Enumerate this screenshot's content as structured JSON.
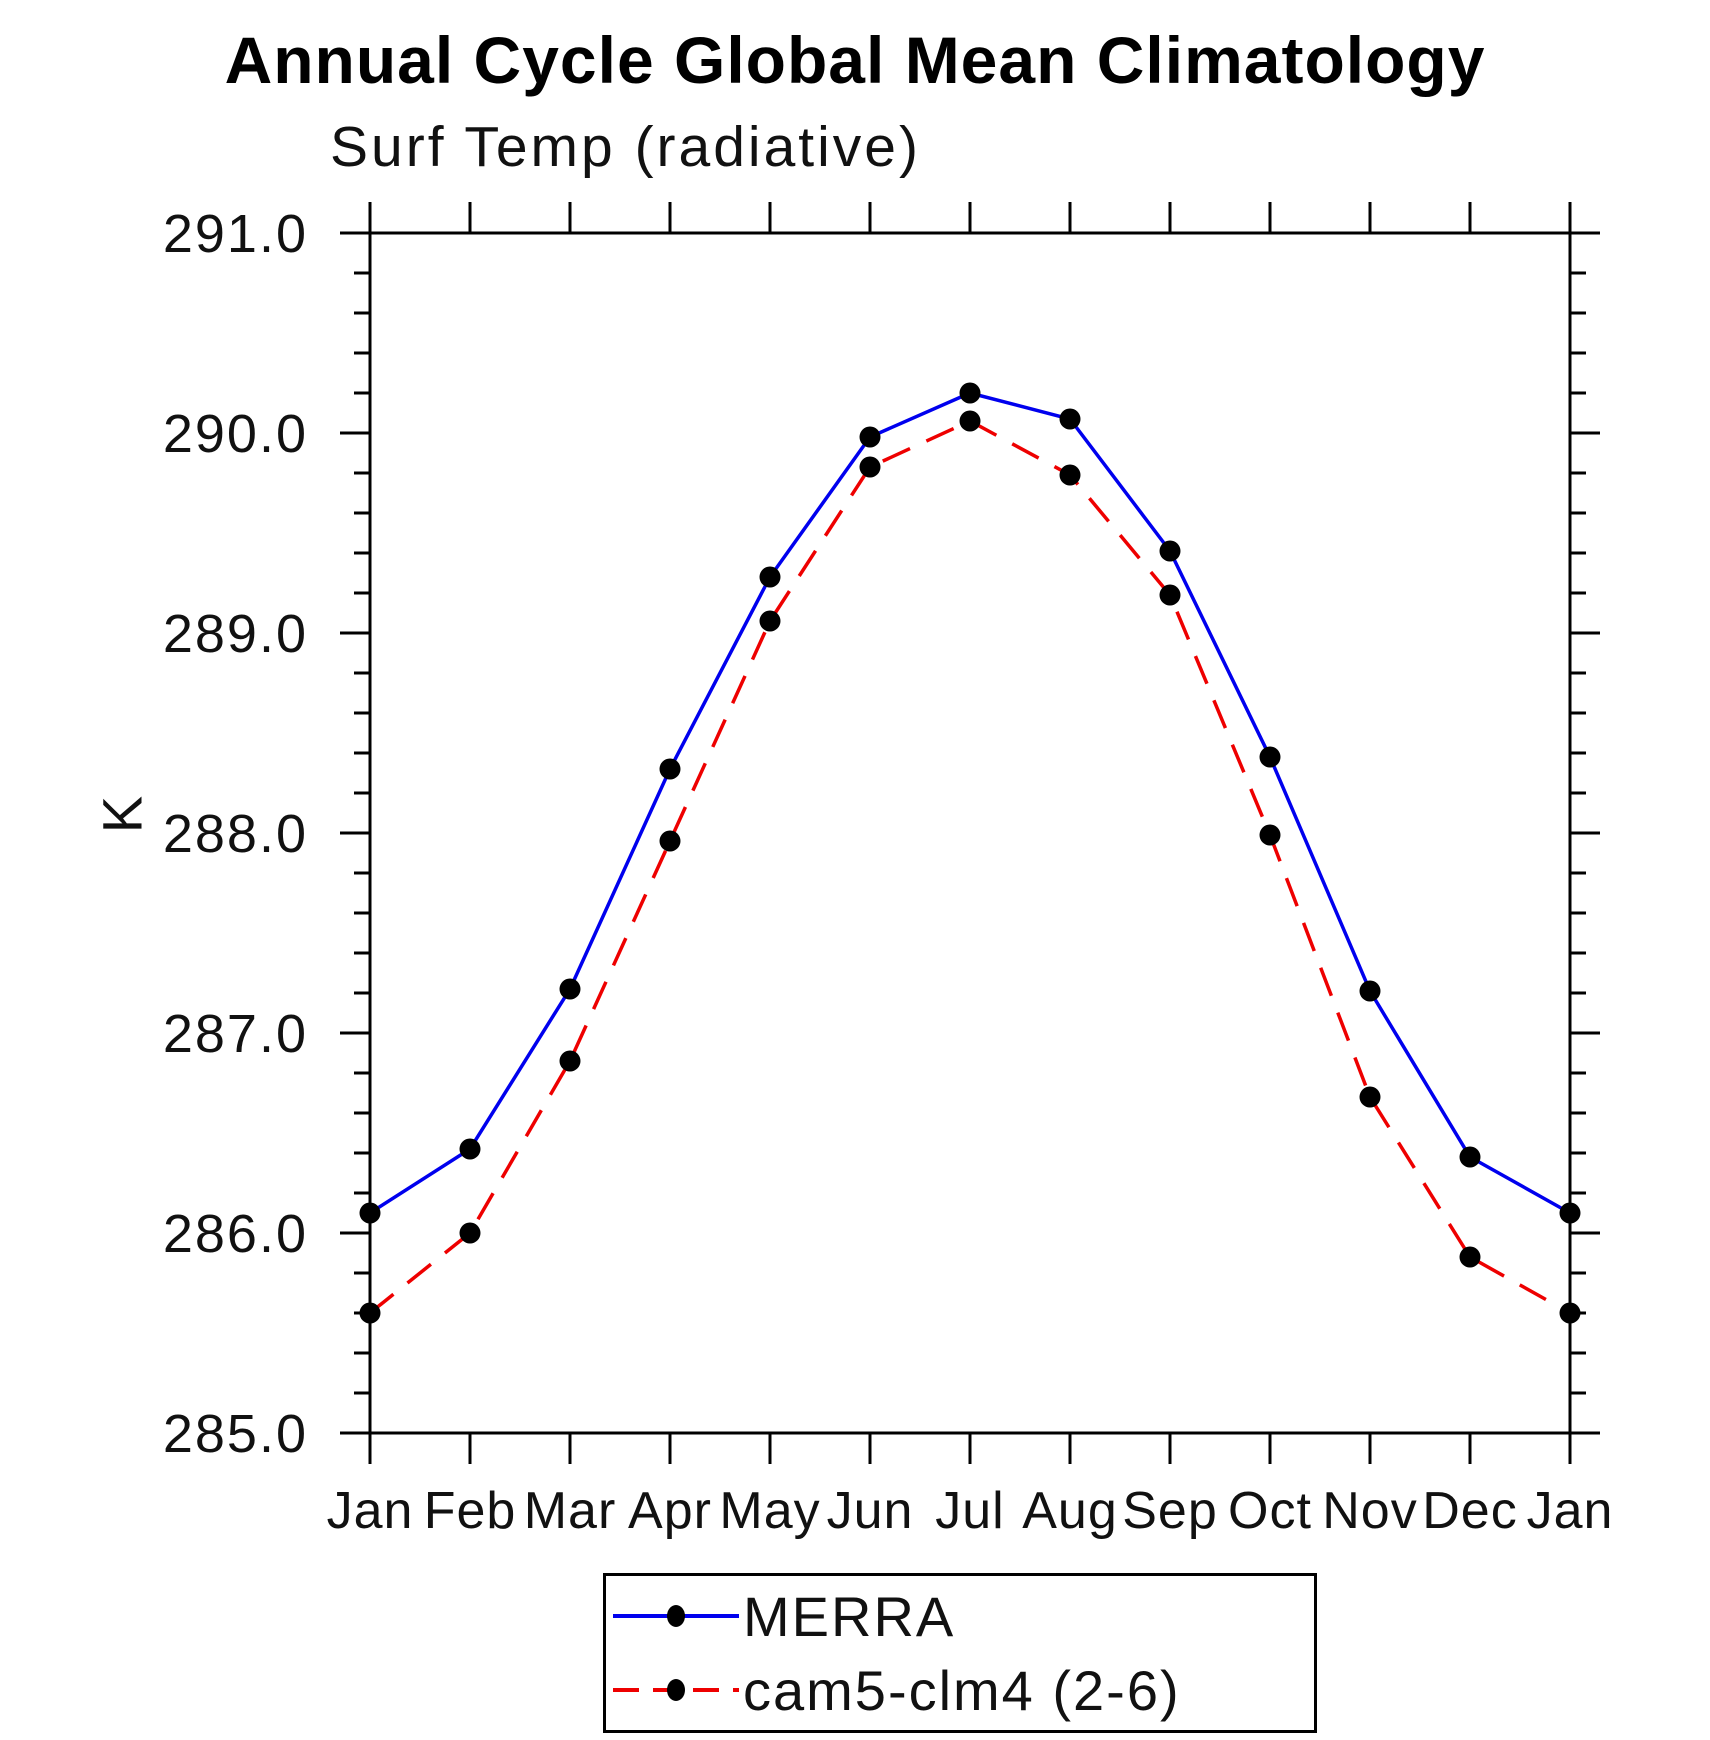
{
  "page": {
    "background_color": "#ffffff",
    "axis_color": "#000000",
    "text_color": "#111111"
  },
  "chart_data": {
    "type": "line",
    "title": "Annual Cycle Global Mean Climatology",
    "subtitle": "Surf Temp (radiative)",
    "ylabel": "K",
    "x_categories": [
      "Jan",
      "Feb",
      "Mar",
      "Apr",
      "May",
      "Jun",
      "Jul",
      "Aug",
      "Sep",
      "Oct",
      "Nov",
      "Dec",
      "Jan"
    ],
    "y_axis": {
      "min": 285.0,
      "max": 291.0,
      "major_step": 1.0,
      "minor_step": 0.2,
      "tick_labels": [
        "285.0",
        "286.0",
        "287.0",
        "288.0",
        "289.0",
        "290.0",
        "291.0"
      ]
    },
    "grid": false,
    "legend_position": "bottom-center",
    "series": [
      {
        "name": "MERRA",
        "color": "#0000ee",
        "line_style": "solid",
        "marker": "filled-circle",
        "marker_color": "#000000",
        "values": [
          286.1,
          286.42,
          287.22,
          288.32,
          289.28,
          289.98,
          290.2,
          290.07,
          289.41,
          288.38,
          287.21,
          286.38,
          286.1
        ]
      },
      {
        "name": "cam5-clm4 (2-6)",
        "color": "#ee0000",
        "line_style": "dashed",
        "marker": "filled-circle",
        "marker_color": "#000000",
        "values": [
          285.6,
          286.0,
          286.86,
          287.96,
          289.06,
          289.83,
          290.06,
          289.79,
          289.19,
          287.99,
          286.68,
          285.88,
          285.6
        ]
      }
    ]
  }
}
